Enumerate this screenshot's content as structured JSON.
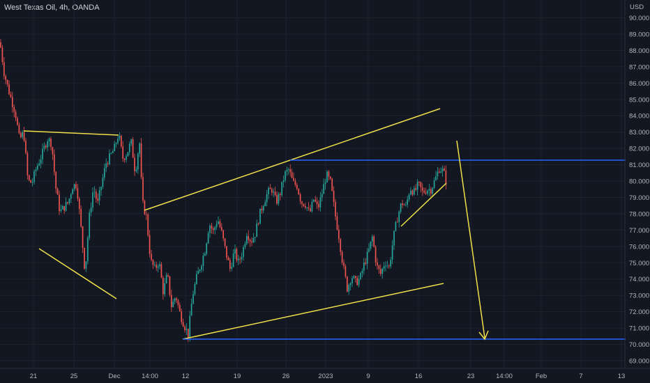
{
  "header": {
    "symbol_title": "West Texas Oil, 4h, OANDA"
  },
  "chart_data": {
    "type": "candlestick",
    "title": "West Texas Oil, 4h, OANDA",
    "currency": "USD",
    "ylim": [
      68.5,
      90.9
    ],
    "y_ticks": [
      "90.000",
      "89.000",
      "88.000",
      "87.000",
      "86.000",
      "85.000",
      "84.000",
      "83.000",
      "82.000",
      "81.000",
      "80.000",
      "79.000",
      "78.000",
      "77.000",
      "76.000",
      "75.000",
      "74.000",
      "73.000",
      "72.000",
      "71.000",
      "70.000",
      "69.000"
    ],
    "x_ticks": [
      "21",
      "25",
      "Dec",
      "14:00",
      "12",
      "19",
      "26",
      "2023",
      "9",
      "16",
      "23",
      "14:00",
      "Feb",
      "7",
      "13"
    ],
    "close_path": [
      [
        0,
        88.5
      ],
      [
        6,
        86.6
      ],
      [
        14,
        85.3
      ],
      [
        22,
        84.2
      ],
      [
        28,
        82.5
      ],
      [
        34,
        83.0
      ],
      [
        40,
        80.0
      ],
      [
        46,
        79.9
      ],
      [
        52,
        80.8
      ],
      [
        60,
        81.6
      ],
      [
        68,
        82.6
      ],
      [
        74,
        82.3
      ],
      [
        80,
        79.6
      ],
      [
        86,
        78.1
      ],
      [
        92,
        78.4
      ],
      [
        98,
        78.7
      ],
      [
        104,
        79.7
      ],
      [
        110,
        79.8
      ],
      [
        116,
        77.2
      ],
      [
        122,
        74.4
      ],
      [
        128,
        77.8
      ],
      [
        134,
        79.6
      ],
      [
        140,
        78.6
      ],
      [
        146,
        79.9
      ],
      [
        152,
        81.1
      ],
      [
        158,
        81.5
      ],
      [
        164,
        82.0
      ],
      [
        170,
        82.9
      ],
      [
        176,
        81.4
      ],
      [
        182,
        81.7
      ],
      [
        188,
        82.4
      ],
      [
        194,
        80.5
      ],
      [
        200,
        82.5
      ],
      [
        204,
        78.7
      ],
      [
        210,
        77.8
      ],
      [
        216,
        75.1
      ],
      [
        222,
        74.6
      ],
      [
        228,
        75.1
      ],
      [
        234,
        73.2
      ],
      [
        240,
        74.3
      ],
      [
        246,
        72.3
      ],
      [
        252,
        73.0
      ],
      [
        258,
        71.9
      ],
      [
        264,
        71.2
      ],
      [
        270,
        70.6
      ],
      [
        276,
        73.0
      ],
      [
        282,
        74.1
      ],
      [
        288,
        74.9
      ],
      [
        294,
        75.8
      ],
      [
        300,
        77.4
      ],
      [
        306,
        76.9
      ],
      [
        312,
        77.7
      ],
      [
        318,
        76.8
      ],
      [
        324,
        75.6
      ],
      [
        330,
        74.6
      ],
      [
        336,
        75.7
      ],
      [
        342,
        75.0
      ],
      [
        348,
        75.7
      ],
      [
        354,
        76.9
      ],
      [
        360,
        76.3
      ],
      [
        366,
        76.8
      ],
      [
        372,
        77.9
      ],
      [
        378,
        78.7
      ],
      [
        384,
        79.3
      ],
      [
        390,
        79.5
      ],
      [
        396,
        78.7
      ],
      [
        402,
        79.3
      ],
      [
        408,
        80.4
      ],
      [
        414,
        80.7
      ],
      [
        420,
        79.9
      ],
      [
        426,
        79.7
      ],
      [
        432,
        78.7
      ],
      [
        438,
        78.6
      ],
      [
        444,
        78.0
      ],
      [
        450,
        78.9
      ],
      [
        456,
        78.3
      ],
      [
        462,
        79.3
      ],
      [
        468,
        80.4
      ],
      [
        474,
        79.9
      ],
      [
        480,
        78.1
      ],
      [
        486,
        76.6
      ],
      [
        492,
        74.8
      ],
      [
        498,
        73.4
      ],
      [
        504,
        74.2
      ],
      [
        510,
        73.8
      ],
      [
        516,
        74.0
      ],
      [
        522,
        74.9
      ],
      [
        528,
        75.6
      ],
      [
        534,
        76.6
      ],
      [
        540,
        74.8
      ],
      [
        546,
        74.3
      ],
      [
        552,
        75.1
      ],
      [
        558,
        74.7
      ],
      [
        564,
        76.5
      ],
      [
        570,
        77.8
      ],
      [
        576,
        78.7
      ],
      [
        582,
        78.4
      ],
      [
        588,
        79.6
      ],
      [
        594,
        79.3
      ],
      [
        600,
        79.8
      ],
      [
        606,
        79.3
      ],
      [
        612,
        79.5
      ],
      [
        618,
        79.5
      ],
      [
        624,
        80.1
      ],
      [
        630,
        80.8
      ],
      [
        636,
        80.6
      ],
      [
        640,
        79.9
      ]
    ],
    "annotations": {
      "blue_resistance_level": 81.25,
      "blue_support_level": 70.35
    }
  },
  "colors": {
    "background": "#131722",
    "bull": "#26a69a",
    "bear": "#ef5350",
    "trendline": "#f0e04a",
    "level": "#2962ff",
    "grid": "#1e222d",
    "text": "#b2b5be"
  }
}
